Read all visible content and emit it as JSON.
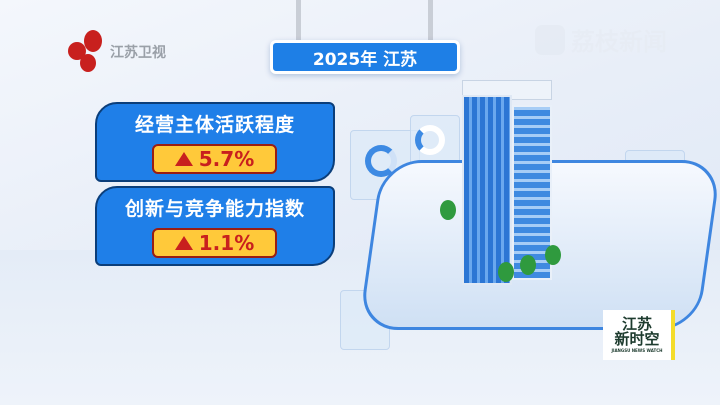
{
  "channel_logo": {
    "text": "江苏卫视",
    "color": "#c8201e"
  },
  "watermark": {
    "text": "荔枝新闻"
  },
  "title_sign": {
    "text": "2025年 江苏"
  },
  "metrics": [
    {
      "label": "经营主体活跃程度",
      "direction": "up",
      "value": "5.7%"
    },
    {
      "label": "创新与竞争能力指数",
      "direction": "up",
      "value": "1.1%"
    }
  ],
  "program_logo": {
    "line1": "江苏",
    "line2": "新时空",
    "subtitle": "JIANGSU NEWS WATCH"
  },
  "colors": {
    "card": "#1f7fe8",
    "badge": "#ffc93a",
    "up_arrow": "#c8201e"
  }
}
